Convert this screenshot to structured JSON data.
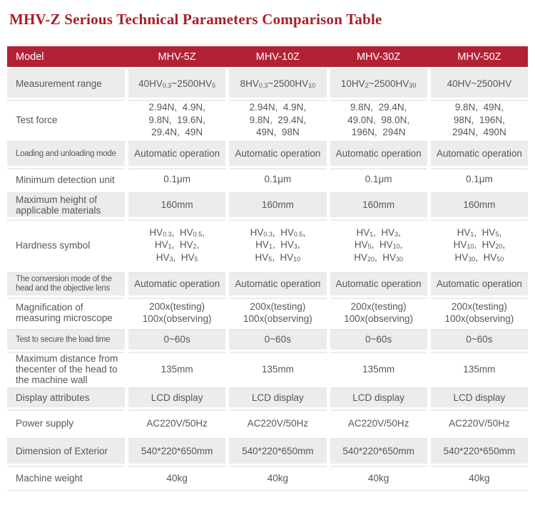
{
  "title": "MHV-Z Serious Technical Parameters Comparison Table",
  "colors": {
    "title_red": "#a91e27",
    "header_bg": "#b32135",
    "header_text": "#ffffff",
    "stripe_gray": "#ececec",
    "body_text": "#57575a"
  },
  "table": {
    "header": {
      "model": "Model",
      "cols": [
        "MHV-5Z",
        "MHV-10Z",
        "MHV-30Z",
        "MHV-50Z"
      ]
    },
    "rows": [
      {
        "label": "Measurement range",
        "cells": [
          [
            {
              "t": "40HV"
            },
            {
              "s": "0.3"
            },
            {
              "t": "~2500HV"
            },
            {
              "s": "5"
            }
          ],
          [
            {
              "t": "8HV"
            },
            {
              "s": "0.3"
            },
            {
              "t": "~2500HV"
            },
            {
              "s": "10"
            }
          ],
          [
            {
              "t": "10HV"
            },
            {
              "s": "2"
            },
            {
              "t": "~2500HV"
            },
            {
              "s": "30"
            }
          ],
          [
            {
              "t": "40HV~2500HV"
            }
          ]
        ]
      },
      {
        "label": "Test force",
        "cells": [
          [
            {
              "t": "2.94N,  4.9N,"
            },
            {
              "br": 1
            },
            {
              "t": "9.8N,  19.6N,"
            },
            {
              "br": 1
            },
            {
              "t": "29.4N,  49N"
            }
          ],
          [
            {
              "t": "2.94N,  4.9N,"
            },
            {
              "br": 1
            },
            {
              "t": "9.8N,  29.4N,"
            },
            {
              "br": 1
            },
            {
              "t": "49N,  98N"
            }
          ],
          [
            {
              "t": "9.8N,  29.4N,"
            },
            {
              "br": 1
            },
            {
              "t": "49.0N,  98.0N,"
            },
            {
              "br": 1
            },
            {
              "t": "196N,  294N"
            }
          ],
          [
            {
              "t": "9.8N,  49N,"
            },
            {
              "br": 1
            },
            {
              "t": "98N,  196N,"
            },
            {
              "br": 1
            },
            {
              "t": "294N,  490N"
            }
          ]
        ]
      },
      {
        "label": "Loading and unloading mode",
        "cells": [
          [
            {
              "t": "Automatic operation"
            }
          ],
          [
            {
              "t": "Automatic operation"
            }
          ],
          [
            {
              "t": "Automatic operation"
            }
          ],
          [
            {
              "t": "Automatic operation"
            }
          ]
        ]
      },
      {
        "label": "Minimum detection unit",
        "cells": [
          [
            {
              "t": "0.1μm"
            }
          ],
          [
            {
              "t": "0.1μm"
            }
          ],
          [
            {
              "t": "0.1μm"
            }
          ],
          [
            {
              "t": "0.1μm"
            }
          ]
        ]
      },
      {
        "label": "Maximum height of applicable materials",
        "cells": [
          [
            {
              "t": "160mm"
            }
          ],
          [
            {
              "t": "160mm"
            }
          ],
          [
            {
              "t": "160mm"
            }
          ],
          [
            {
              "t": "160mm"
            }
          ]
        ]
      },
      {
        "label": "Hardness symbol",
        "cells": [
          [
            {
              "t": "HV"
            },
            {
              "s": "0.3"
            },
            {
              "t": ",  HV"
            },
            {
              "s": "0.5"
            },
            {
              "t": ","
            },
            {
              "br": 1
            },
            {
              "t": "HV"
            },
            {
              "s": "1"
            },
            {
              "t": ",  HV"
            },
            {
              "s": "2"
            },
            {
              "t": ","
            },
            {
              "br": 1
            },
            {
              "t": "HV"
            },
            {
              "s": "3"
            },
            {
              "t": ",  HV"
            },
            {
              "s": "5"
            }
          ],
          [
            {
              "t": "HV"
            },
            {
              "s": "0.3"
            },
            {
              "t": ",  HV"
            },
            {
              "s": "0.5"
            },
            {
              "t": ","
            },
            {
              "br": 1
            },
            {
              "t": "HV"
            },
            {
              "s": "1"
            },
            {
              "t": ",  HV"
            },
            {
              "s": "3"
            },
            {
              "t": ","
            },
            {
              "br": 1
            },
            {
              "t": "HV"
            },
            {
              "s": "5"
            },
            {
              "t": ",  HV"
            },
            {
              "s": "10"
            }
          ],
          [
            {
              "t": "HV"
            },
            {
              "s": "1"
            },
            {
              "t": ",  HV"
            },
            {
              "s": "3"
            },
            {
              "t": ","
            },
            {
              "br": 1
            },
            {
              "t": "HV"
            },
            {
              "s": "5"
            },
            {
              "t": ",  HV"
            },
            {
              "s": "10"
            },
            {
              "t": ","
            },
            {
              "br": 1
            },
            {
              "t": "HV"
            },
            {
              "s": "20"
            },
            {
              "t": ",  HV"
            },
            {
              "s": "30"
            }
          ],
          [
            {
              "t": "HV"
            },
            {
              "s": "1"
            },
            {
              "t": ",  HV"
            },
            {
              "s": "5"
            },
            {
              "t": ","
            },
            {
              "br": 1
            },
            {
              "t": "HV"
            },
            {
              "s": "10"
            },
            {
              "t": ",  HV"
            },
            {
              "s": "20"
            },
            {
              "t": ","
            },
            {
              "br": 1
            },
            {
              "t": "HV"
            },
            {
              "s": "30"
            },
            {
              "t": ",  HV"
            },
            {
              "s": "50"
            }
          ]
        ]
      },
      {
        "label": "The conversion mode of the head and the objective lens",
        "cells": [
          [
            {
              "t": "Automatic operation"
            }
          ],
          [
            {
              "t": "Automatic operation"
            }
          ],
          [
            {
              "t": "Automatic operation"
            }
          ],
          [
            {
              "t": "Automatic operation"
            }
          ]
        ]
      },
      {
        "label": "Magnification of measuring microscope",
        "cells": [
          [
            {
              "t": "200x(testing)"
            },
            {
              "br": 1
            },
            {
              "t": "100x(observing)"
            }
          ],
          [
            {
              "t": "200x(testing)"
            },
            {
              "br": 1
            },
            {
              "t": "100x(observing)"
            }
          ],
          [
            {
              "t": "200x(testing)"
            },
            {
              "br": 1
            },
            {
              "t": "100x(observing)"
            }
          ],
          [
            {
              "t": "200x(testing)"
            },
            {
              "br": 1
            },
            {
              "t": "100x(observing)"
            }
          ]
        ]
      },
      {
        "label": "Test to secure the load time",
        "cells": [
          [
            {
              "t": "0~60s"
            }
          ],
          [
            {
              "t": "0~60s"
            }
          ],
          [
            {
              "t": "0~60s"
            }
          ],
          [
            {
              "t": "0~60s"
            }
          ]
        ]
      },
      {
        "label": "Maximum distance from thecenter of the head to the machine wall",
        "cells": [
          [
            {
              "t": "135mm"
            }
          ],
          [
            {
              "t": "135mm"
            }
          ],
          [
            {
              "t": "135mm"
            }
          ],
          [
            {
              "t": "135mm"
            }
          ]
        ]
      },
      {
        "label": "Display attributes",
        "cells": [
          [
            {
              "t": "LCD display"
            }
          ],
          [
            {
              "t": "LCD display"
            }
          ],
          [
            {
              "t": "LCD display"
            }
          ],
          [
            {
              "t": "LCD display"
            }
          ]
        ]
      },
      {
        "label": "Power supply",
        "cells": [
          [
            {
              "t": "AC220V/50Hz"
            }
          ],
          [
            {
              "t": "AC220V/50Hz"
            }
          ],
          [
            {
              "t": "AC220V/50Hz"
            }
          ],
          [
            {
              "t": "AC220V/50Hz"
            }
          ]
        ]
      },
      {
        "label": "Dimension of Exterior",
        "cells": [
          [
            {
              "t": "540*220*650mm"
            }
          ],
          [
            {
              "t": "540*220*650mm"
            }
          ],
          [
            {
              "t": "540*220*650mm"
            }
          ],
          [
            {
              "t": "540*220*650mm"
            }
          ]
        ]
      },
      {
        "label": "Machine weight",
        "cells": [
          [
            {
              "t": "40kg"
            }
          ],
          [
            {
              "t": "40kg"
            }
          ],
          [
            {
              "t": "40kg"
            }
          ],
          [
            {
              "t": "40kg"
            }
          ]
        ]
      }
    ]
  }
}
